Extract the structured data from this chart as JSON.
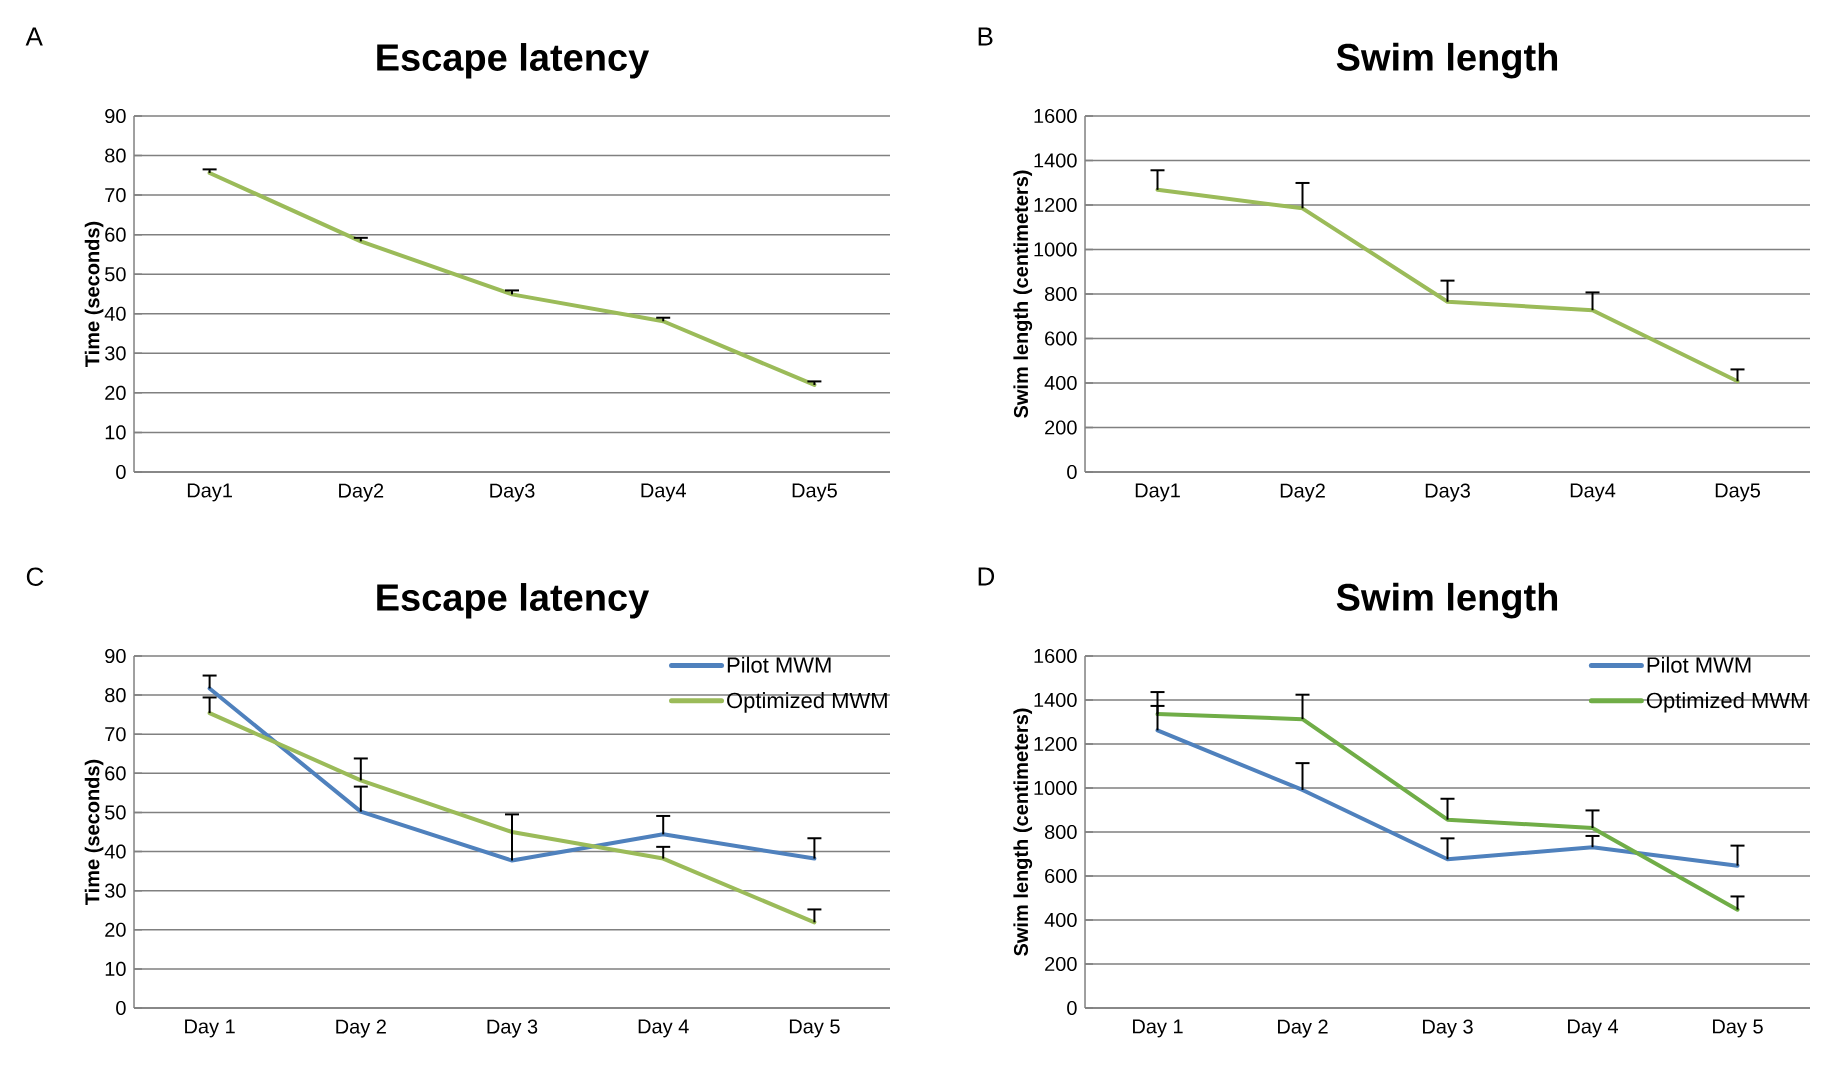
{
  "chart_data": [
    {
      "type": "line",
      "title": "Escape latency",
      "ylabel": "Time (seconds)",
      "annotations": [
        "A"
      ],
      "categories": [
        "Day1",
        "Day2",
        "Day3",
        "Day4",
        "Day5"
      ],
      "series": [
        {
          "color": "#9bbb59",
          "values": [
            75.6,
            58.3,
            44.9,
            38.1,
            22.0
          ],
          "errors": [
            [
              75.6,
              76.5
            ],
            [
              58.3,
              59.2
            ],
            [
              44.9,
              45.9
            ],
            [
              38.1,
              39.0
            ],
            [
              22.0,
              22.9
            ]
          ]
        }
      ],
      "ylim": [
        0,
        90
      ],
      "yticks": [
        0,
        10,
        20,
        30,
        40,
        50,
        60,
        70,
        80,
        90
      ],
      "grid": "y"
    },
    {
      "type": "line",
      "title": "Swim length",
      "ylabel": "Swim length (centimeters)",
      "annotations": [
        "B"
      ],
      "categories": [
        "Day1",
        "Day2",
        "Day3",
        "Day4",
        "Day5"
      ],
      "series": [
        {
          "color": "#9bbb59",
          "values": [
            1268,
            1185,
            765,
            727,
            408
          ],
          "errors": [
            [
              1268,
              1356
            ],
            [
              1185,
              1299
            ],
            [
              765,
              860
            ],
            [
              727,
              807
            ],
            [
              408,
              461
            ]
          ]
        }
      ],
      "ylim": [
        0,
        1600
      ],
      "yticks": [
        0,
        200,
        400,
        600,
        800,
        1000,
        1200,
        1400,
        1600
      ],
      "grid": "y"
    },
    {
      "type": "line",
      "title": "Escape latency",
      "ylabel": "Time (seconds)",
      "annotations": [
        "C"
      ],
      "categories": [
        "Day 1",
        "Day 2",
        "Day 3",
        "Day 4",
        "Day 5"
      ],
      "series": [
        {
          "name": "Pilot MWM",
          "color": "#4f81bd",
          "values": [
            81.7,
            50.2,
            37.7,
            44.4,
            38.2
          ],
          "errors": [
            [
              81.7,
              85.0
            ],
            [
              50.2,
              56.6
            ],
            [
              37.7,
              49.5
            ],
            [
              44.4,
              49.1
            ],
            [
              38.2,
              43.4
            ]
          ]
        },
        {
          "name": "Optimized MWM",
          "color": "#9bbb59",
          "values": [
            75.4,
            58.2,
            45.0,
            38.2,
            21.9
          ],
          "errors": [
            [
              75.4,
              79.4
            ],
            [
              58.2,
              63.8
            ],
            null,
            [
              38.2,
              41.2
            ],
            [
              21.9,
              25.2
            ]
          ]
        }
      ],
      "ylim": [
        0,
        90
      ],
      "yticks": [
        0,
        10,
        20,
        30,
        40,
        50,
        60,
        70,
        80,
        90
      ],
      "grid": "y",
      "legend": "top right"
    },
    {
      "type": "line",
      "title": "Swim length",
      "ylabel": "Swim length (centimeters)",
      "annotations": [
        "D"
      ],
      "categories": [
        "Day 1",
        "Day 2",
        "Day 3",
        "Day 4",
        "Day 5"
      ],
      "series": [
        {
          "name": "Pilot MWM",
          "color": "#4f81bd",
          "values": [
            1262,
            991,
            676,
            731,
            647
          ],
          "errors": [
            [
              1262,
              1373
            ],
            [
              991,
              1113
            ],
            [
              676,
              771
            ],
            [
              731,
              782
            ],
            [
              647,
              738
            ]
          ]
        },
        {
          "name": "Optimized MWM",
          "color": "#70ad47",
          "values": [
            1336,
            1313,
            856,
            818,
            447
          ],
          "errors": [
            [
              1336,
              1436
            ],
            [
              1313,
              1424
            ],
            [
              856,
              951
            ],
            [
              818,
              898
            ],
            [
              447,
              507
            ]
          ]
        }
      ],
      "ylim": [
        0,
        1600
      ],
      "yticks": [
        0,
        200,
        400,
        600,
        800,
        1000,
        1200,
        1400,
        1600
      ],
      "grid": "y",
      "legend": "top right"
    }
  ]
}
